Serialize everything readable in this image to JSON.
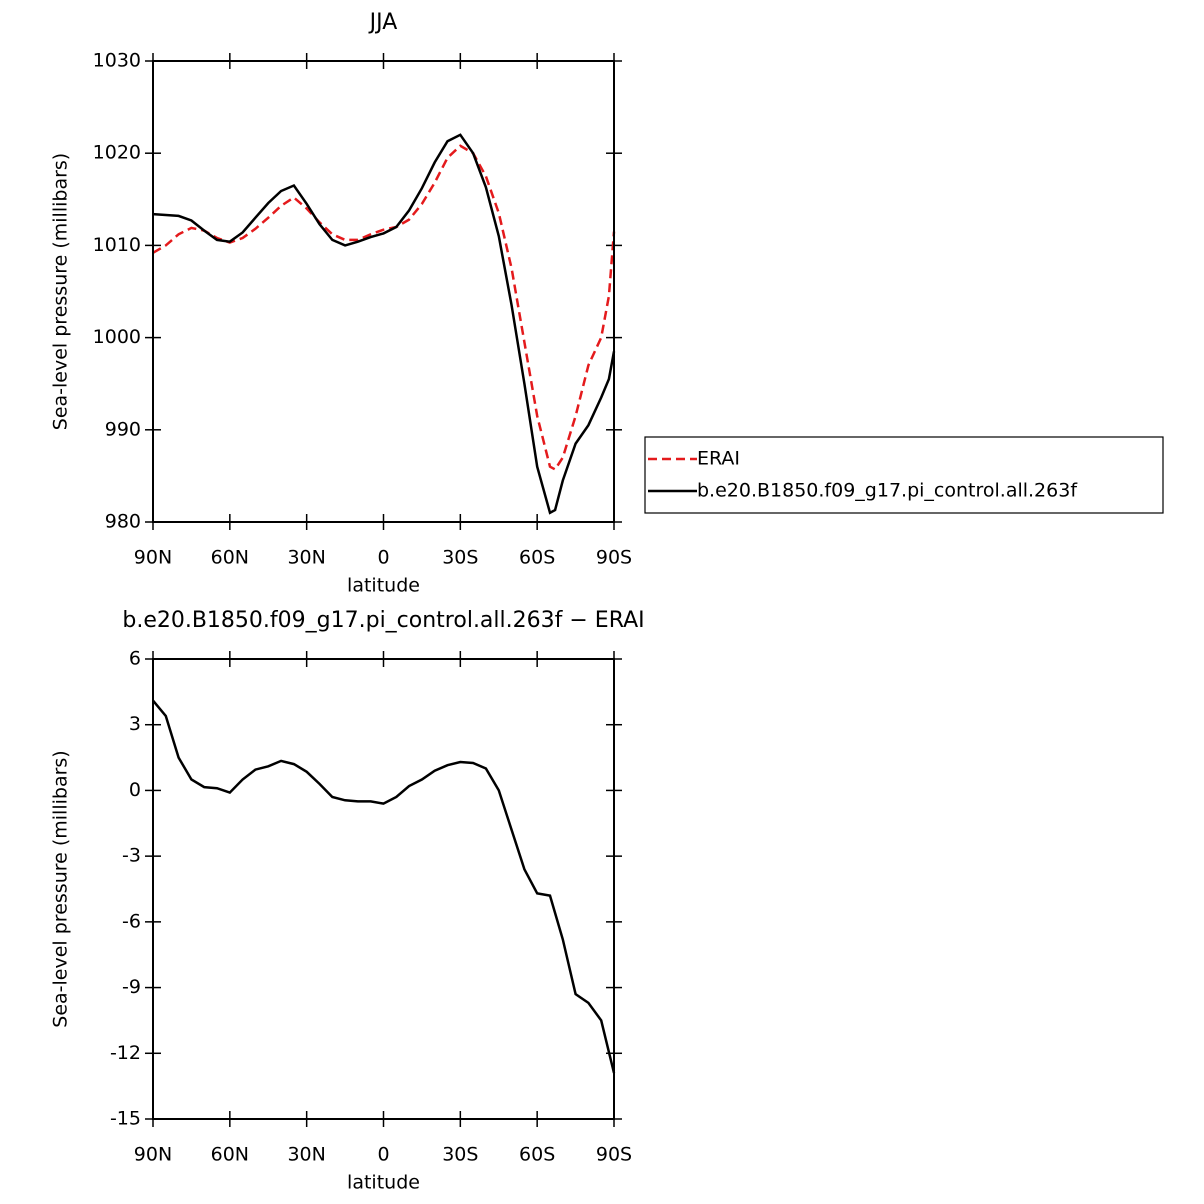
{
  "chart_data": [
    {
      "type": "line",
      "title": "JJA",
      "x_label": "latitude",
      "y_label": "Sea-level pressure (millibars)",
      "x": [
        90,
        85,
        80,
        75,
        70,
        65,
        60,
        55,
        50,
        45,
        40,
        35,
        30,
        25,
        20,
        15,
        10,
        5,
        0,
        -5,
        -10,
        -15,
        -20,
        -25,
        -30,
        -35,
        -40,
        -45,
        -50,
        -55,
        -60,
        -65,
        -67,
        -70,
        -75,
        -80,
        -85,
        -88,
        -90
      ],
      "series": [
        {
          "name": "ERAI",
          "color": "#e41a1c",
          "line_style": "dashed",
          "values": [
            1009.2,
            1010.0,
            1011.2,
            1011.9,
            1011.6,
            1010.8,
            1010.3,
            1010.8,
            1011.8,
            1013.0,
            1014.3,
            1015.2,
            1014.0,
            1012.5,
            1011.2,
            1010.6,
            1010.6,
            1011.2,
            1011.7,
            1012.0,
            1012.8,
            1014.5,
            1016.8,
            1019.5,
            1020.8,
            1020.0,
            1017.5,
            1013.5,
            1007.5,
            999.5,
            991.5,
            986.0,
            985.7,
            987.0,
            991.5,
            997.0,
            1000.0,
            1004.5,
            1011.5
          ]
        },
        {
          "name": "b.e20.B1850.f09_g17.pi_control.all.263f",
          "color": "#000000",
          "line_style": "solid",
          "values": [
            1013.4,
            1013.3,
            1013.2,
            1012.7,
            1011.6,
            1010.6,
            1010.4,
            1011.4,
            1013.0,
            1014.6,
            1015.9,
            1016.5,
            1014.5,
            1012.3,
            1010.6,
            1010.0,
            1010.4,
            1010.9,
            1011.3,
            1012.0,
            1013.8,
            1016.2,
            1019.0,
            1021.3,
            1022.0,
            1020.0,
            1016.3,
            1011.0,
            1003.5,
            995.0,
            986.0,
            981.0,
            981.3,
            984.5,
            988.5,
            990.5,
            993.5,
            995.5,
            998.5
          ]
        }
      ],
      "xlim": [
        90,
        -90
      ],
      "xticks": [
        {
          "value": 90,
          "label": "90N"
        },
        {
          "value": 60,
          "label": "60N"
        },
        {
          "value": 30,
          "label": "30N"
        },
        0,
        {
          "value": -30,
          "label": "30S"
        },
        {
          "value": -60,
          "label": "60S"
        },
        {
          "value": -90,
          "label": "90S"
        }
      ],
      "ylim": [
        980,
        1030
      ],
      "yticks": [
        980,
        990,
        1000,
        1010,
        1020,
        1030
      ],
      "legend": "right"
    },
    {
      "type": "line",
      "title": "b.e20.B1850.f09_g17.pi_control.all.263f − ERAI",
      "x_label": "latitude",
      "y_label": "Sea-level pressure (millibars)",
      "x": [
        90,
        85,
        80,
        75,
        70,
        65,
        60,
        55,
        50,
        45,
        40,
        35,
        30,
        25,
        20,
        15,
        10,
        5,
        0,
        -5,
        -10,
        -15,
        -20,
        -25,
        -30,
        -35,
        -40,
        -45,
        -50,
        -55,
        -60,
        -65,
        -70,
        -75,
        -80,
        -85,
        -90
      ],
      "series": [
        {
          "color": "#000000",
          "line_style": "solid",
          "values": [
            4.1,
            3.4,
            1.5,
            0.5,
            0.15,
            0.1,
            -0.1,
            0.5,
            0.95,
            1.1,
            1.35,
            1.2,
            0.85,
            0.3,
            -0.3,
            -0.45,
            -0.5,
            -0.5,
            -0.6,
            -0.3,
            0.2,
            0.5,
            0.9,
            1.15,
            1.3,
            1.25,
            1.0,
            0.0,
            -1.8,
            -3.6,
            -4.7,
            -4.8,
            -6.8,
            -9.3,
            -9.7,
            -10.5,
            -12.9
          ]
        }
      ],
      "xlim": [
        90,
        -90
      ],
      "xticks": [
        {
          "value": 90,
          "label": "90N"
        },
        {
          "value": 60,
          "label": "60N"
        },
        {
          "value": 30,
          "label": "30N"
        },
        0,
        {
          "value": -30,
          "label": "30S"
        },
        {
          "value": -60,
          "label": "60S"
        },
        {
          "value": -90,
          "label": "90S"
        }
      ],
      "ylim": [
        -15,
        6
      ],
      "yticks": [
        -15,
        -12,
        -9,
        -6,
        -3,
        0,
        3,
        6
      ]
    }
  ]
}
